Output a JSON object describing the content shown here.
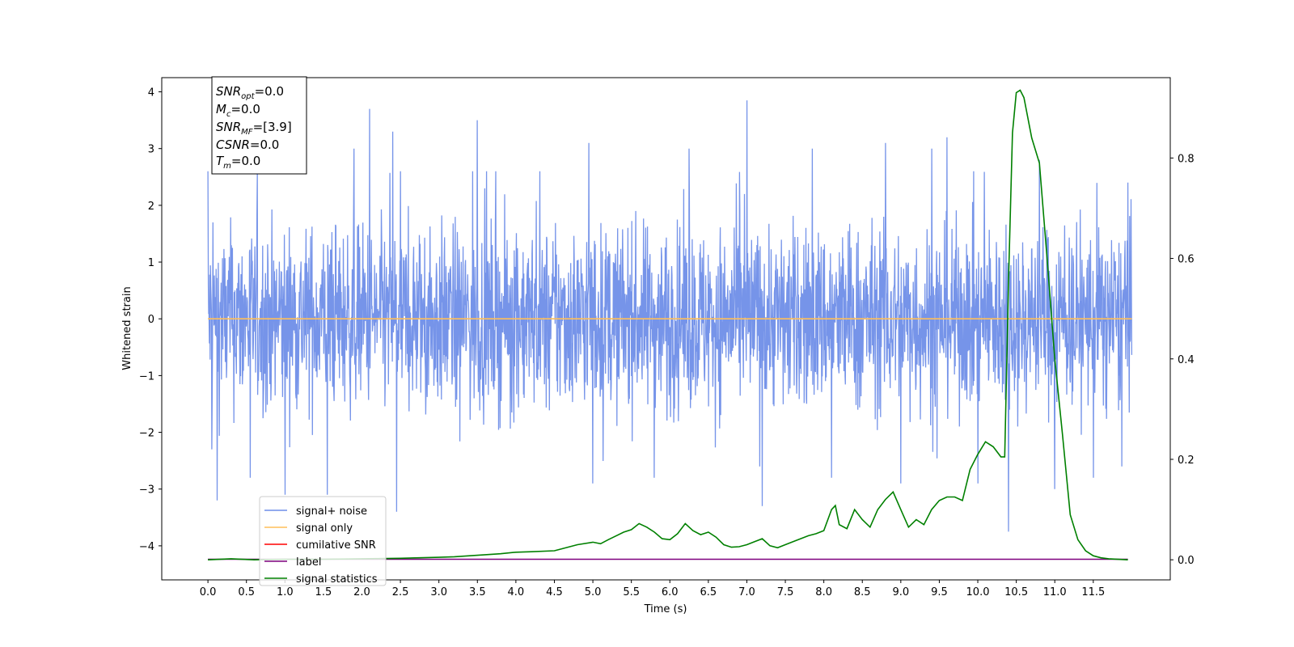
{
  "chart_data": {
    "type": "line",
    "xlabel": "Time (s)",
    "ylabel": "Whitened strain",
    "xlim": [
      -0.6,
      12.5
    ],
    "ylim": [
      -4.6,
      4.25
    ],
    "y2lim": [
      -0.04,
      0.96
    ],
    "x_ticks": [
      0.0,
      0.5,
      1.0,
      1.5,
      2.0,
      2.5,
      3.0,
      3.5,
      4.0,
      4.5,
      5.0,
      5.5,
      6.0,
      6.5,
      7.0,
      7.5,
      8.0,
      8.5,
      9.0,
      9.5,
      10.0,
      10.5,
      11.0,
      11.5
    ],
    "x_tick_labels": [
      "0.0",
      "0.5",
      "1.0",
      "1.5",
      "2.0",
      "2.5",
      "3.0",
      "3.5",
      "4.0",
      "4.5",
      "5.0",
      "5.5",
      "6.0",
      "6.5",
      "7.0",
      "7.5",
      "8.0",
      "8.5",
      "9.0",
      "9.5",
      "10.0",
      "10.5",
      "11.0",
      "11.5"
    ],
    "y_ticks": [
      4,
      3,
      2,
      1,
      0,
      -1,
      -2,
      -3,
      -4
    ],
    "y_tick_labels": [
      "4",
      "3",
      "2",
      "1",
      "0",
      "−1",
      "−2",
      "−3",
      "−4"
    ],
    "y2_ticks": [
      0.8,
      0.6,
      0.4,
      0.2,
      0.0
    ],
    "y2_tick_labels": [
      "0.8",
      "0.6",
      "0.4",
      "0.2",
      "0.0"
    ],
    "series": [
      {
        "name": "signal+ noise",
        "axis": "left",
        "color": "#6f8ee8",
        "kind": "noise",
        "x_range": [
          0.0,
          12.0
        ],
        "band": [
          -1.6,
          1.6
        ],
        "extremes": [
          [
            0.0,
            2.6
          ],
          [
            0.05,
            -2.3
          ],
          [
            0.12,
            -3.2
          ],
          [
            0.55,
            -2.8
          ],
          [
            1.0,
            -3.1
          ],
          [
            1.55,
            -3.1
          ],
          [
            1.9,
            3.0
          ],
          [
            2.1,
            3.7
          ],
          [
            2.4,
            3.3
          ],
          [
            2.45,
            -3.4
          ],
          [
            3.5,
            3.5
          ],
          [
            4.95,
            3.1
          ],
          [
            5.0,
            -2.9
          ],
          [
            5.8,
            -2.8
          ],
          [
            6.25,
            3.0
          ],
          [
            7.0,
            3.85
          ],
          [
            7.2,
            -3.3
          ],
          [
            7.85,
            3.0
          ],
          [
            8.1,
            -2.8
          ],
          [
            8.8,
            3.1
          ],
          [
            9.0,
            -2.9
          ],
          [
            9.4,
            3.0
          ],
          [
            9.6,
            3.2
          ],
          [
            10.0,
            -2.9
          ],
          [
            10.4,
            -3.75
          ],
          [
            10.8,
            2.8
          ],
          [
            11.0,
            -3.0
          ],
          [
            11.5,
            -2.8
          ],
          [
            11.95,
            2.4
          ]
        ]
      },
      {
        "name": "signal only",
        "axis": "left",
        "color": "#ffbf58",
        "x": [
          0.0,
          12.0
        ],
        "y": [
          0.0,
          0.0
        ]
      },
      {
        "name": "cumilative SNR",
        "axis": "right",
        "color": "#ff0000",
        "x": [],
        "y": []
      },
      {
        "name": "label",
        "axis": "right",
        "color": "#7f007f",
        "x": [
          0.0,
          11.95
        ],
        "y": [
          0.001,
          0.001
        ]
      },
      {
        "name": "signal statistics",
        "axis": "right",
        "color": "#008000",
        "x": [
          0.0,
          0.3,
          0.6,
          1.0,
          1.5,
          2.0,
          2.5,
          3.0,
          3.2,
          3.5,
          3.8,
          4.0,
          4.2,
          4.5,
          4.6,
          4.8,
          5.0,
          5.1,
          5.2,
          5.4,
          5.5,
          5.6,
          5.7,
          5.8,
          5.9,
          6.0,
          6.1,
          6.2,
          6.3,
          6.4,
          6.5,
          6.6,
          6.7,
          6.8,
          6.9,
          7.0,
          7.1,
          7.2,
          7.3,
          7.4,
          7.5,
          7.6,
          7.8,
          7.9,
          8.0,
          8.1,
          8.15,
          8.2,
          8.3,
          8.4,
          8.5,
          8.6,
          8.7,
          8.8,
          8.9,
          9.0,
          9.1,
          9.2,
          9.3,
          9.4,
          9.5,
          9.6,
          9.7,
          9.8,
          9.9,
          10.0,
          10.1,
          10.2,
          10.3,
          10.35,
          10.4,
          10.45,
          10.5,
          10.55,
          10.6,
          10.7,
          10.8,
          10.9,
          11.0,
          11.1,
          11.2,
          11.3,
          11.4,
          11.5,
          11.6,
          11.7,
          11.95
        ],
        "y": [
          0.0,
          0.002,
          0.0,
          0.001,
          0.001,
          0.002,
          0.003,
          0.005,
          0.006,
          0.009,
          0.012,
          0.015,
          0.016,
          0.018,
          0.022,
          0.03,
          0.035,
          0.032,
          0.04,
          0.055,
          0.06,
          0.072,
          0.065,
          0.055,
          0.042,
          0.04,
          0.052,
          0.072,
          0.058,
          0.05,
          0.055,
          0.045,
          0.03,
          0.025,
          0.026,
          0.03,
          0.036,
          0.042,
          0.028,
          0.024,
          0.03,
          0.036,
          0.048,
          0.052,
          0.058,
          0.1,
          0.108,
          0.07,
          0.062,
          0.1,
          0.08,
          0.065,
          0.1,
          0.12,
          0.135,
          0.1,
          0.065,
          0.08,
          0.07,
          0.1,
          0.118,
          0.125,
          0.125,
          0.118,
          0.18,
          0.21,
          0.235,
          0.225,
          0.205,
          0.205,
          0.56,
          0.85,
          0.93,
          0.935,
          0.92,
          0.84,
          0.79,
          0.6,
          0.4,
          0.25,
          0.09,
          0.04,
          0.018,
          0.008,
          0.004,
          0.002,
          0.0
        ]
      }
    ],
    "legend": {
      "placement": "lower-left",
      "entries": [
        {
          "label": "signal+ noise",
          "color": "#6f8ee8"
        },
        {
          "label": "signal only",
          "color": "#ffbf58"
        },
        {
          "label": "cumilative SNR",
          "color": "#ff0000"
        },
        {
          "label": "label",
          "color": "#7f007f"
        },
        {
          "label": "signal statistics",
          "color": "#008000"
        }
      ]
    },
    "info_box": {
      "snr_opt": {
        "sym": "SNR",
        "sub": "opt",
        "value": "=0.0"
      },
      "mc": {
        "sym": "M",
        "sub": "c",
        "value": "=0.0"
      },
      "snr_mf": {
        "sym": "SNR",
        "sub": "MF",
        "value": "=[3.9]"
      },
      "csnr": {
        "sym": "CSNR",
        "value": "=0.0"
      },
      "tm": {
        "sym": "T",
        "sub": "m",
        "value": "=0.0"
      }
    }
  }
}
